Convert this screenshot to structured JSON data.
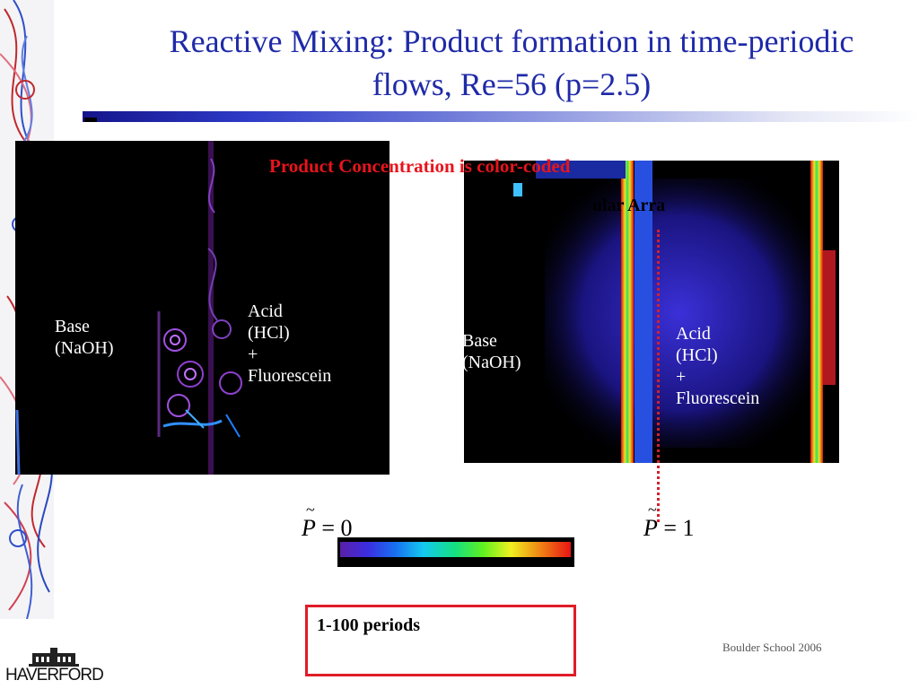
{
  "title": "Reactive Mixing: Product formation in time-periodic flows, Re=56 (p=2.5)",
  "subtitle": "Product Concentration is color-coded",
  "partially_hidden_label": "ular Arra",
  "left_panel": {
    "base_label": "Base\n(NaOH)",
    "acid_label": "Acid\n(HCl)\n+\nFluorescein"
  },
  "right_panel": {
    "base_label": "Base\n(NaOH)",
    "acid_label": "Acid\n(HCl)\n+\nFluorescein"
  },
  "colorbar": {
    "min_label": "= 0",
    "max_label": "= 1",
    "symbol": "P",
    "colors": [
      "#5a1fa8",
      "#3a2ee0",
      "#1870f0",
      "#14c8f0",
      "#14e080",
      "#60f020",
      "#f0f020",
      "#f08a14",
      "#e81414"
    ]
  },
  "periods_text": "1-100 periods",
  "footer": "Boulder School 2006",
  "logo_text": "HAVERFORD",
  "colors": {
    "title": "#1f2aa8",
    "subtitle": "#e8141c",
    "box_border": "#e01c28"
  }
}
